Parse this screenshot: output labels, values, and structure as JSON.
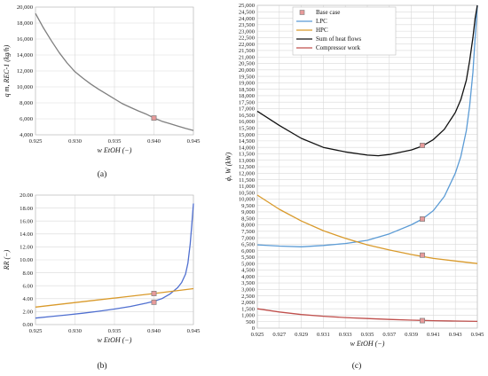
{
  "chart_data": [
    {
      "panel": "(a)",
      "type": "line",
      "ylabel": "q m, REC-1 (kg/h)",
      "xlabel": "w EtOH (−)",
      "xlim": [
        0.925,
        0.945
      ],
      "ylim": [
        4000,
        20000
      ],
      "xticks": [
        "0.925",
        "0.930",
        "0.935",
        "0.940",
        "0.945"
      ],
      "yticks": [
        "4,000",
        "6,000",
        "8,000",
        "10,000",
        "12,000",
        "14,000",
        "16,000",
        "18,000",
        "20,000"
      ],
      "grid": true,
      "series": [
        {
          "color": "#7f7f7f",
          "x": [
            0.925,
            0.926,
            0.927,
            0.928,
            0.929,
            0.93,
            0.931,
            0.932,
            0.933,
            0.934,
            0.935,
            0.936,
            0.937,
            0.938,
            0.939,
            0.94,
            0.941,
            0.942,
            0.943,
            0.944,
            0.945
          ],
          "y": [
            19200,
            17400,
            15800,
            14300,
            13000,
            11900,
            11100,
            10350,
            9700,
            9100,
            8500,
            7900,
            7450,
            7000,
            6600,
            6100,
            5700,
            5400,
            5100,
            4800,
            4550
          ]
        }
      ],
      "markers": [
        {
          "x": 0.94,
          "y": 6100
        }
      ]
    },
    {
      "panel": "(b)",
      "type": "line",
      "ylabel": "RR (−)",
      "xlabel": "w EtOH (−)",
      "xlim": [
        0.925,
        0.945
      ],
      "ylim": [
        0,
        20
      ],
      "xticks": [
        "0.925",
        "0.930",
        "0.935",
        "0.940",
        "0.945"
      ],
      "yticks": [
        "0.00",
        "2.00",
        "4.00",
        "6.00",
        "8.00",
        "10.00",
        "12.00",
        "14.00",
        "16.00",
        "18.00",
        "20.00"
      ],
      "grid": true,
      "series": [
        {
          "color": "#4f6fd0",
          "x": [
            0.925,
            0.927,
            0.929,
            0.931,
            0.933,
            0.935,
            0.937,
            0.939,
            0.94,
            0.941,
            0.942,
            0.943,
            0.9435,
            0.944,
            0.9443,
            0.9446,
            0.9448,
            0.945
          ],
          "y": [
            1.0,
            1.25,
            1.5,
            1.75,
            2.05,
            2.4,
            2.8,
            3.3,
            3.6,
            4.0,
            4.7,
            5.7,
            6.5,
            7.8,
            9.5,
            12.5,
            15.5,
            18.7
          ]
        },
        {
          "color": "#d99a2b",
          "x": [
            0.925,
            0.93,
            0.935,
            0.94,
            0.945
          ],
          "y": [
            2.7,
            3.4,
            4.1,
            4.8,
            5.55
          ]
        }
      ],
      "markers": [
        {
          "x": 0.94,
          "y": 4.8
        },
        {
          "x": 0.94,
          "y": 3.45
        }
      ]
    },
    {
      "panel": "(c)",
      "type": "line",
      "ylabel": "ϕ, W (kW)",
      "xlabel": "w EtOH (−)",
      "xlim": [
        0.925,
        0.945
      ],
      "ylim": [
        0,
        25000
      ],
      "xticks": [
        "0.925",
        "0.927",
        "0.929",
        "0.931",
        "0.933",
        "0.935",
        "0.937",
        "0.939",
        "0.941",
        "0.943",
        "0.945"
      ],
      "yticks": [
        "0",
        "500",
        "1,000",
        "1,500",
        "2,000",
        "2,500",
        "3,000",
        "3,500",
        "4,000",
        "4,500",
        "5,000",
        "5,500",
        "6,000",
        "6,500",
        "7,000",
        "7,500",
        "8,000",
        "8,500",
        "9,000",
        "9,500",
        "10,000",
        "10,500",
        "11,000",
        "11,500",
        "12,000",
        "12,500",
        "13,000",
        "13,500",
        "14,000",
        "14,500",
        "15,000",
        "15,500",
        "16,000",
        "16,500",
        "17,000",
        "17,500",
        "18,000",
        "18,500",
        "19,000",
        "19,500",
        "20,000",
        "20,500",
        "21,000",
        "21,500",
        "22,000",
        "22,500",
        "23,000",
        "23,500",
        "24,000",
        "24,500",
        "25,000"
      ],
      "grid": true,
      "legend_position": "top-right",
      "series": [
        {
          "name": "LPC",
          "color": "#5b9bd5",
          "x": [
            0.925,
            0.927,
            0.929,
            0.931,
            0.933,
            0.935,
            0.937,
            0.939,
            0.94,
            0.941,
            0.942,
            0.943,
            0.9435,
            0.944,
            0.9443,
            0.9446,
            0.9448,
            0.945
          ],
          "y": [
            6450,
            6350,
            6300,
            6400,
            6550,
            6800,
            7300,
            8000,
            8450,
            9100,
            10200,
            12000,
            13300,
            15300,
            17200,
            19800,
            22500,
            25000
          ]
        },
        {
          "name": "HPC",
          "color": "#d99a2b",
          "x": [
            0.925,
            0.927,
            0.929,
            0.931,
            0.933,
            0.935,
            0.937,
            0.939,
            0.94,
            0.941,
            0.943,
            0.945
          ],
          "y": [
            10300,
            9200,
            8300,
            7550,
            6950,
            6450,
            6050,
            5700,
            5550,
            5400,
            5200,
            5000
          ]
        },
        {
          "name": "Sum of heat flows",
          "color": "#111111",
          "x": [
            0.925,
            0.927,
            0.929,
            0.931,
            0.933,
            0.935,
            0.936,
            0.937,
            0.939,
            0.94,
            0.941,
            0.942,
            0.943,
            0.9435,
            0.944,
            0.9443,
            0.9446,
            0.9448,
            0.945
          ],
          "y": [
            16800,
            15700,
            14700,
            14000,
            13650,
            13400,
            13350,
            13450,
            13800,
            14100,
            14600,
            15400,
            16700,
            17700,
            19200,
            20700,
            22500,
            24000,
            25000
          ]
        },
        {
          "name": "Compressor work",
          "color": "#c0504d",
          "x": [
            0.925,
            0.927,
            0.929,
            0.931,
            0.933,
            0.935,
            0.937,
            0.939,
            0.94,
            0.941,
            0.943,
            0.945
          ],
          "y": [
            1500,
            1250,
            1050,
            920,
            820,
            740,
            670,
            620,
            600,
            580,
            550,
            520
          ]
        }
      ],
      "base_case_label": "Base case",
      "markers": [
        {
          "x": 0.94,
          "y": 14150
        },
        {
          "x": 0.94,
          "y": 8450
        },
        {
          "x": 0.94,
          "y": 5650
        },
        {
          "x": 0.94,
          "y": 580
        }
      ]
    }
  ]
}
